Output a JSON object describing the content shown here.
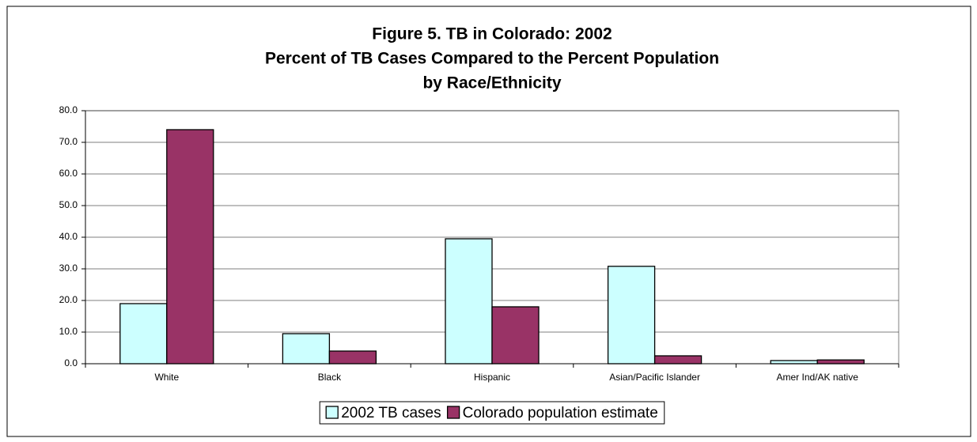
{
  "chart_data": {
    "type": "bar",
    "title": [
      "Figure 5.  TB in Colorado:  2002",
      "Percent of TB Cases Compared to the Percent Population",
      "by Race/Ethnicity"
    ],
    "categories": [
      "White",
      "Black",
      "Hispanic",
      "Asian/Pacific Islander",
      "Amer Ind/AK native"
    ],
    "series": [
      {
        "name": "2002 TB cases",
        "color": "#ccffff",
        "values": [
          19.0,
          9.5,
          39.5,
          30.8,
          1.0
        ]
      },
      {
        "name": "Colorado population estimate",
        "color": "#993366",
        "values": [
          74.0,
          4.0,
          18.0,
          2.5,
          1.2
        ]
      }
    ],
    "ylim": [
      0,
      80
    ],
    "yticks": [
      {
        "value": 0,
        "label": "0.0"
      },
      {
        "value": 10,
        "label": "10.0"
      },
      {
        "value": 20,
        "label": "20.0"
      },
      {
        "value": 30,
        "label": "30.0"
      },
      {
        "value": 40,
        "label": "40.0"
      },
      {
        "value": 50,
        "label": "50.0"
      },
      {
        "value": 60,
        "label": "60.0"
      },
      {
        "value": 70,
        "label": "70.0"
      },
      {
        "value": 80,
        "label": "80.0"
      }
    ],
    "grid": true,
    "legend": "bottom"
  }
}
